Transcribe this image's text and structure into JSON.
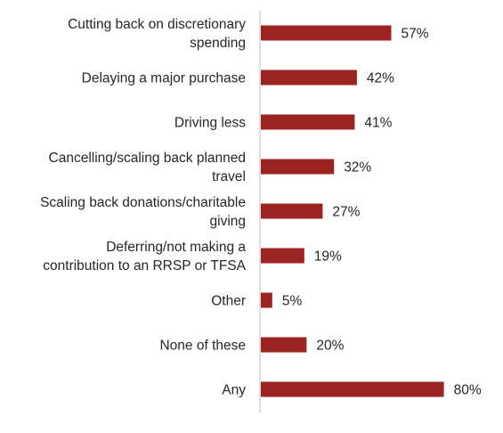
{
  "chart_data": {
    "type": "bar",
    "orientation": "horizontal",
    "categories": [
      "Cutting back on discretionary spending",
      "Delaying a major purchase",
      "Driving less",
      "Cancelling/scaling back planned travel",
      "Scaling back donations/charitable giving",
      "Deferring/not making a contribution to an RRSP or TFSA",
      "Other",
      "None of these",
      "Any"
    ],
    "category_lines": [
      [
        "Cutting back on discretionary",
        "spending"
      ],
      [
        "Delaying a major purchase"
      ],
      [
        "Driving less"
      ],
      [
        "Cancelling/scaling back planned",
        "travel"
      ],
      [
        "Scaling back donations/charitable",
        "giving"
      ],
      [
        "Deferring/not making a",
        "contribution to an RRSP or TFSA"
      ],
      [
        "Other"
      ],
      [
        "None of these"
      ],
      [
        "Any"
      ]
    ],
    "values": [
      57,
      42,
      41,
      32,
      27,
      19,
      5,
      20,
      80
    ],
    "value_labels": [
      "57%",
      "42%",
      "41%",
      "32%",
      "27%",
      "19%",
      "5%",
      "20%",
      "80%"
    ],
    "xlim": [
      0,
      100
    ],
    "bar_color": "#9b2423",
    "axis_color": "#bfbfbf",
    "grid": false,
    "legend": "none",
    "title": "",
    "xlabel": "",
    "ylabel": ""
  }
}
